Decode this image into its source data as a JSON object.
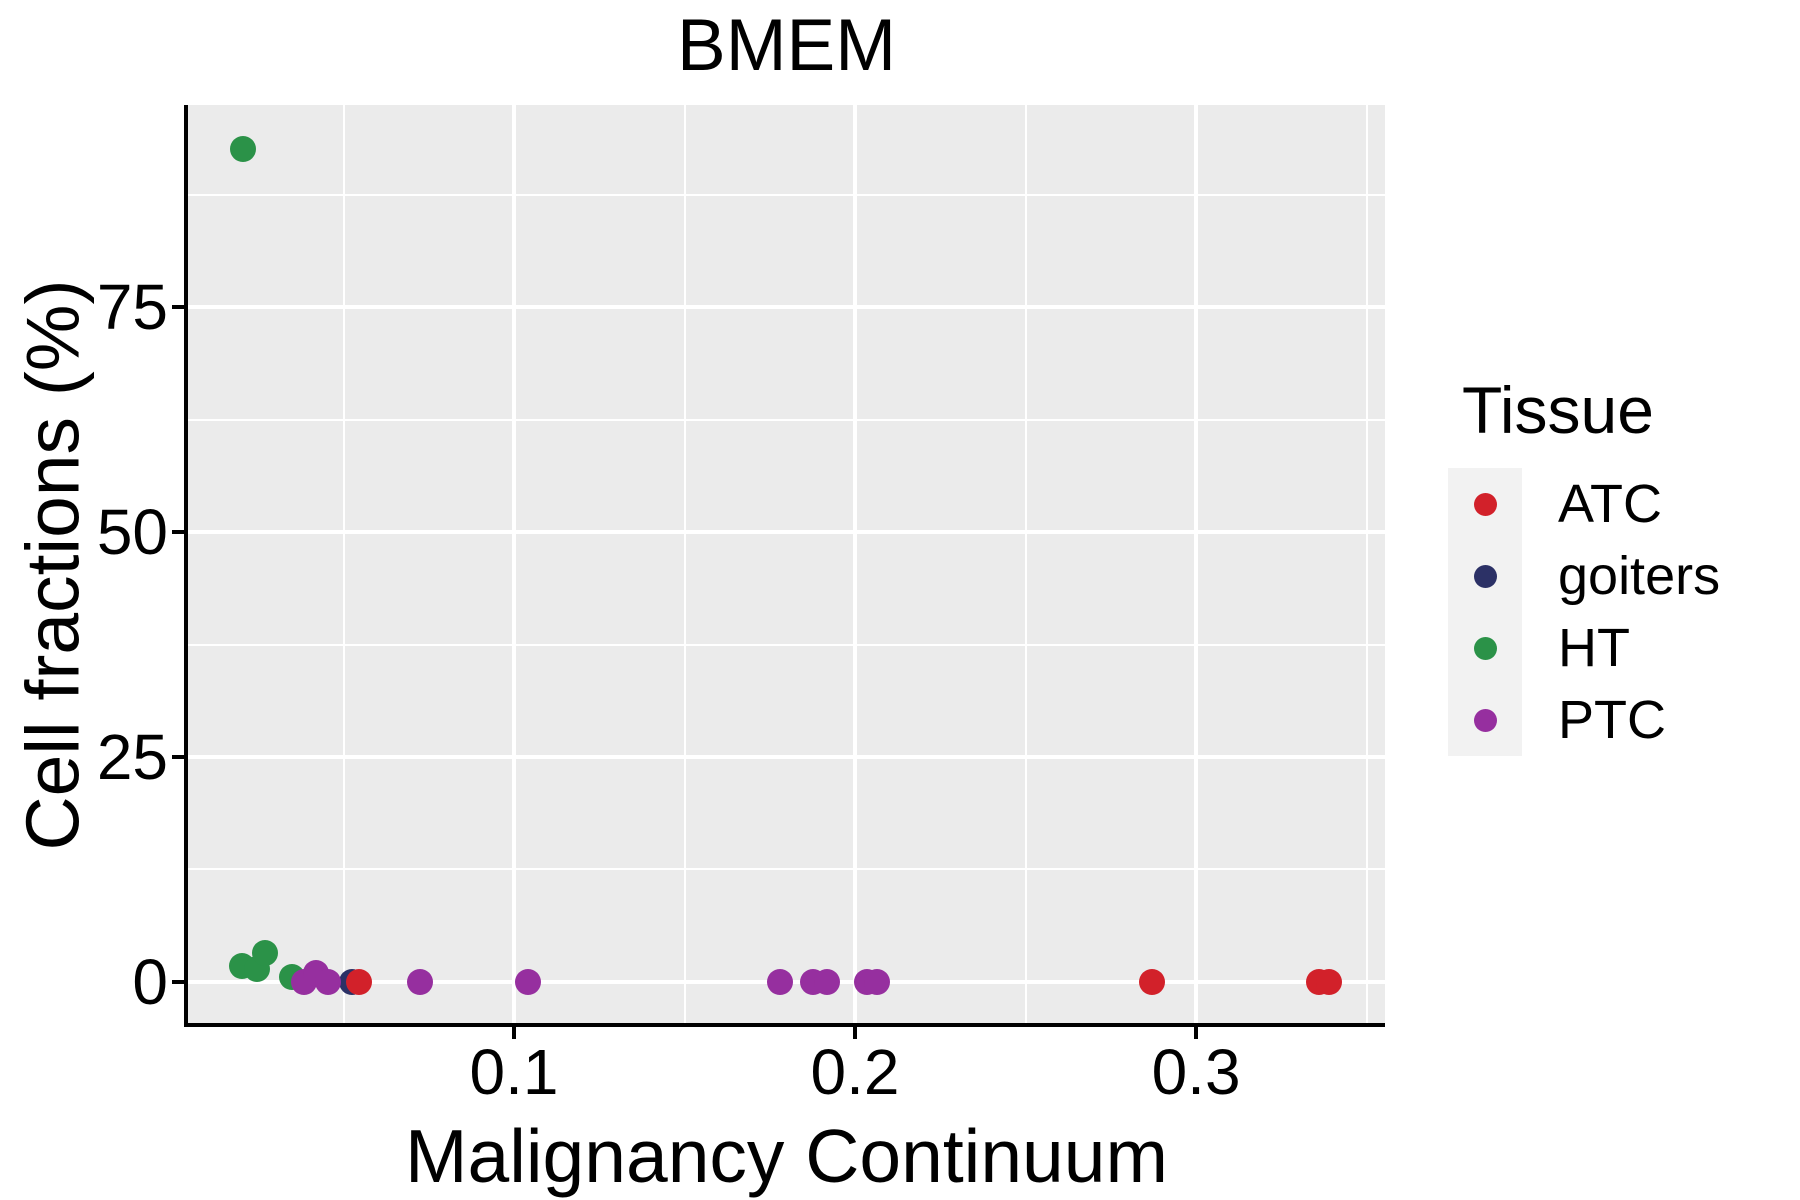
{
  "title": "BMEM",
  "chart_data": {
    "type": "scatter",
    "title": "BMEM",
    "xlabel": "Malignancy Continuum",
    "ylabel": "Cell fractions (%)",
    "xlim": [
      0.0044,
      0.3554
    ],
    "ylim": [
      -4.78,
      97.45
    ],
    "x_major_ticks": [
      0.1,
      0.2,
      0.3
    ],
    "x_tick_labels": [
      "0.1",
      "0.2",
      "0.3"
    ],
    "x_minor_ticks": [
      0.05,
      0.15,
      0.25,
      0.35
    ],
    "y_major_ticks": [
      0,
      25,
      50,
      75
    ],
    "y_tick_labels": [
      "0",
      "25",
      "50",
      "75"
    ],
    "y_minor_ticks": [
      12.5,
      37.5,
      62.5,
      87.5
    ],
    "grid": "white major+minor gridlines on grey panel",
    "legend_position": "right",
    "series": [
      {
        "name": "HT",
        "color": "#2B9248",
        "points": [
          [
            0.0205,
            92.6
          ],
          [
            0.0202,
            1.8
          ],
          [
            0.0246,
            1.4
          ],
          [
            0.027,
            3.2
          ],
          [
            0.035,
            0.5
          ]
        ]
      },
      {
        "name": "goiters",
        "color": "#2C3166",
        "points": [
          [
            0.0525,
            0
          ]
        ]
      },
      {
        "name": "PTC",
        "color": "#962F9F",
        "points": [
          [
            0.0385,
            0
          ],
          [
            0.042,
            1.0
          ],
          [
            0.0455,
            0
          ],
          [
            0.0725,
            0
          ],
          [
            0.104,
            0
          ],
          [
            0.178,
            0
          ],
          [
            0.1877,
            0
          ],
          [
            0.1918,
            0
          ],
          [
            0.2035,
            0
          ],
          [
            0.2065,
            0
          ]
        ]
      },
      {
        "name": "ATC",
        "color": "#D2212A",
        "points": [
          [
            0.0545,
            0
          ],
          [
            0.287,
            0
          ],
          [
            0.336,
            0
          ],
          [
            0.339,
            0
          ]
        ]
      }
    ]
  },
  "legend": {
    "title": "Tissue",
    "items": [
      {
        "label": "ATC",
        "color": "#D2212A"
      },
      {
        "label": "goiters",
        "color": "#2C3166"
      },
      {
        "label": "HT",
        "color": "#2B9248"
      },
      {
        "label": "PTC",
        "color": "#962F9F"
      }
    ]
  },
  "colors": {
    "panel_bg": "#EBEBEB",
    "grid": "#FFFFFF",
    "axis": "#000000",
    "legend_key_bg": "#F2F2F2",
    "text": "#000000"
  }
}
